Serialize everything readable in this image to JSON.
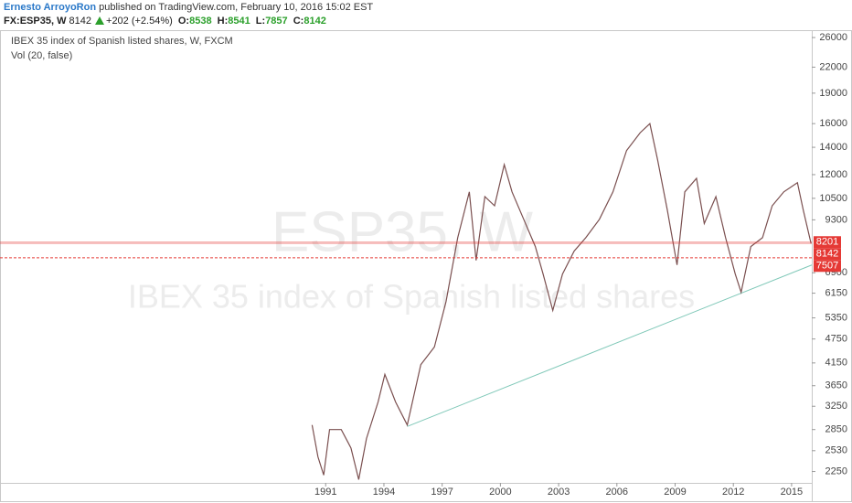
{
  "header": {
    "author": "Ernesto ArroyoRon",
    "published": "published on TradingView.com, February 10, 2016 15:02 EST",
    "symbol": "FX:ESP35, W",
    "last": "8142",
    "change": "+202 (+2.54%)",
    "open_label": "O:",
    "open": "8538",
    "high_label": "H:",
    "high": "8541",
    "low_label": "L:",
    "low": "7857",
    "close_label": "C:",
    "close": "8142"
  },
  "chart_data": {
    "type": "line",
    "legend_title": "IBEX 35 index of Spanish listed shares, W, FXCM",
    "legend_volume": "Vol (20, false)",
    "watermark_symbol": "ESP35, W",
    "watermark_name": "IBEX 35 index of Spanish listed shares",
    "log_y": true,
    "grid": false,
    "xlim": [
      1974.6,
      2016.04
    ],
    "ylim": [
      2110,
      27100
    ],
    "xticks": [
      1991,
      1994,
      1997,
      2000,
      2003,
      2006,
      2009,
      2012,
      2015
    ],
    "yticks": [
      2250,
      2530,
      2850,
      3250,
      3650,
      4150,
      4750,
      5350,
      6150,
      6900,
      9300,
      10500,
      12000,
      14000,
      16000,
      19000,
      22000,
      26000
    ],
    "series": [
      {
        "name": "FX:ESP35, W",
        "color": "#7a4f4f",
        "x": [
          1990.3,
          1990.6,
          1990.9,
          1991.2,
          1991.8,
          1992.3,
          1992.7,
          1993.1,
          1993.7,
          1994.05,
          1994.6,
          1995.2,
          1995.9,
          1996.6,
          1997.2,
          1997.8,
          1998.4,
          1998.75,
          1999.2,
          1999.7,
          2000.2,
          2000.6,
          2001.2,
          2001.8,
          2002.2,
          2002.7,
          2003.2,
          2003.8,
          2004.4,
          2005.1,
          2005.8,
          2006.5,
          2007.2,
          2007.7,
          2008.1,
          2008.6,
          2009.1,
          2009.5,
          2010.1,
          2010.5,
          2011.1,
          2011.6,
          2012.1,
          2012.4,
          2012.9,
          2013.5,
          2014.0,
          2014.6,
          2015.3,
          2015.6,
          2016.0
        ],
        "values": [
          2925,
          2444,
          2205,
          2850,
          2850,
          2570,
          2150,
          2710,
          3330,
          3890,
          3330,
          2925,
          4110,
          4540,
          5860,
          8410,
          10890,
          7400,
          10600,
          10070,
          12700,
          10890,
          9330,
          8000,
          6850,
          5580,
          6850,
          7800,
          8410,
          9330,
          10890,
          13750,
          15200,
          16000,
          13030,
          9820,
          7210,
          10890,
          11750,
          9110,
          10600,
          8410,
          6850,
          6180,
          8000,
          8410,
          10070,
          10890,
          11470,
          9820,
          8142
        ]
      }
    ],
    "trendline": {
      "color": "#7fc8b8",
      "x": [
        1995.2,
        2016.04
      ],
      "values": [
        2900,
        7210
      ]
    },
    "hlines": [
      {
        "value": 8201,
        "color": "#e53935",
        "style": "solid"
      },
      {
        "value": 8142,
        "color": "#e53935",
        "style": "solid"
      },
      {
        "value": 7507,
        "color": "#e53935",
        "style": "dashed"
      }
    ]
  }
}
